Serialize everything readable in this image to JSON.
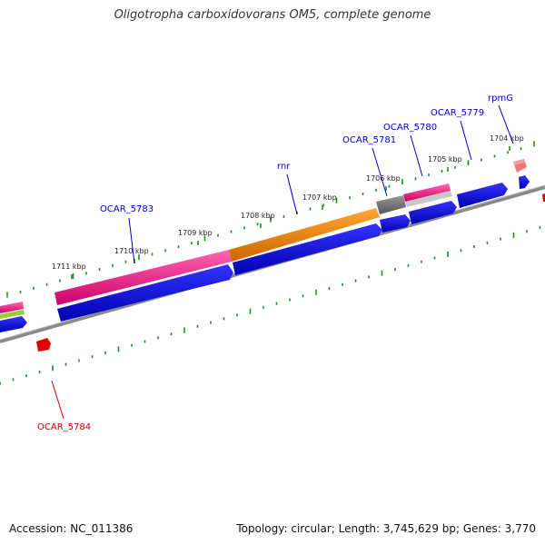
{
  "title": "Oligotropha carboxidovorans OM5, complete genome",
  "footer": {
    "accession": "Accession: NC_011386",
    "summary": "Topology: circular; Length: 3,745,629 bp; Genes: 3,770"
  },
  "ticks": [
    {
      "label": "1711 kbp"
    },
    {
      "label": "1710 kbp"
    },
    {
      "label": "1709 kbp"
    },
    {
      "label": "1708 kbp"
    },
    {
      "label": "1707 kbp"
    },
    {
      "label": "1706 kbp"
    },
    {
      "label": "1705 kbp"
    },
    {
      "label": "1704 kbp"
    }
  ],
  "gene_labels": [
    {
      "name": "OCAR_5783",
      "color": "#0000cc"
    },
    {
      "name": "rnr",
      "color": "#0000cc"
    },
    {
      "name": "OCAR_5781",
      "color": "#0000cc"
    },
    {
      "name": "OCAR_5780",
      "color": "#0000cc"
    },
    {
      "name": "OCAR_5779",
      "color": "#0000cc"
    },
    {
      "name": "rpmG",
      "color": "#0000cc"
    },
    {
      "name": "OCAR_5784",
      "color": "#cc0000"
    }
  ],
  "colors": {
    "cds": "#0000e0",
    "cds_bar": "#ff1493",
    "rna_bar": "#ff8c00",
    "pseudo": "#707070",
    "backbone": "#777777",
    "tick": "#228b22",
    "trna": "#e05050",
    "reverse_gene": "#e00000",
    "misc": "#9acd32"
  }
}
